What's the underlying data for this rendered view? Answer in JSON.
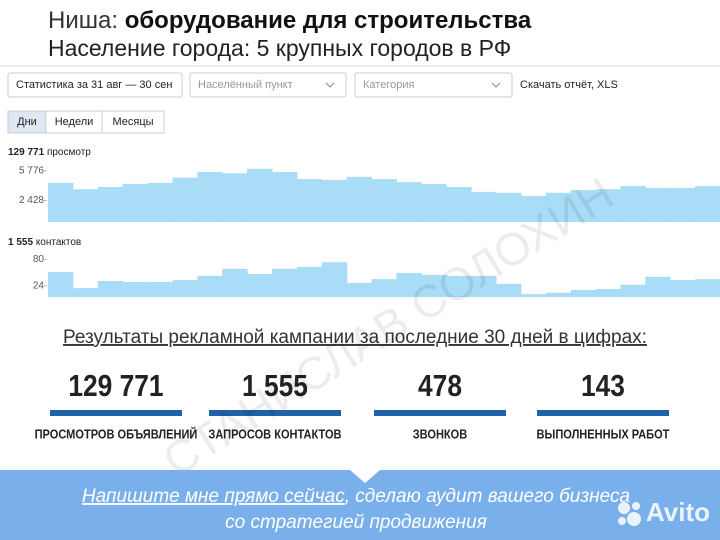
{
  "header": {
    "niche_label": "Ниша:",
    "niche": "оборудование для строительства",
    "population": "Население города: 5 крупных городов в РФ"
  },
  "toolbar": {
    "period": "Статистика за 31 авг — 30 сен",
    "locality": "Населённый пункт",
    "category": "Категория",
    "report": "Скачать отчёт, XLS"
  },
  "tabs": [
    "Дни",
    "Недели",
    "Месяцы"
  ],
  "chart_data": [
    {
      "type": "bar",
      "total": "129 771",
      "unit": "просмотр",
      "color": "#a8dcf7",
      "ylim": [
        0,
        7000
      ],
      "yticks": [
        {
          "value": 5776,
          "label": "5 776"
        },
        {
          "value": 2428,
          "label": "2 428"
        }
      ],
      "values": [
        4400,
        3700,
        3950,
        4300,
        4400,
        5000,
        5650,
        5500,
        6000,
        5650,
        4850,
        4750,
        5100,
        4850,
        4500,
        4300,
        3950,
        3400,
        3300,
        2950,
        3300,
        3600,
        3700,
        4050,
        3850,
        3850,
        4050
      ]
    },
    {
      "type": "bar",
      "total": "1 555",
      "unit": "контактов",
      "color": "#a8dcf7",
      "ylim": [
        0,
        100
      ],
      "yticks": [
        80,
        24
      ],
      "values": [
        53,
        19,
        34,
        32,
        32,
        36,
        45,
        60,
        49,
        60,
        64,
        74,
        30,
        38,
        51,
        47,
        45,
        45,
        28,
        6,
        9,
        15,
        17,
        26,
        43,
        36,
        38
      ]
    }
  ],
  "results": {
    "title": "Результаты рекламной кампании за последние 30 дней в цифрах:",
    "items": [
      {
        "value": "129 771",
        "label": "ПРОСМОТРОВ ОБЪЯВЛЕНИЙ"
      },
      {
        "value": "1 555",
        "label": "ЗАПРОСОВ КОНТАКТОВ"
      },
      {
        "value": "478",
        "label": "ЗВОНКОВ"
      },
      {
        "value": "143",
        "label": "ВЫПОЛНЕННЫХ РАБОТ"
      }
    ]
  },
  "cta": {
    "link": "Напишите мне прямо сейчас",
    "rest": ", сделаю аудит вашего бизнеса",
    "line2": "со стратегией продвижения"
  },
  "watermark": "СТАНИСЛАВ СОЛОХИН",
  "logo": "Avito"
}
